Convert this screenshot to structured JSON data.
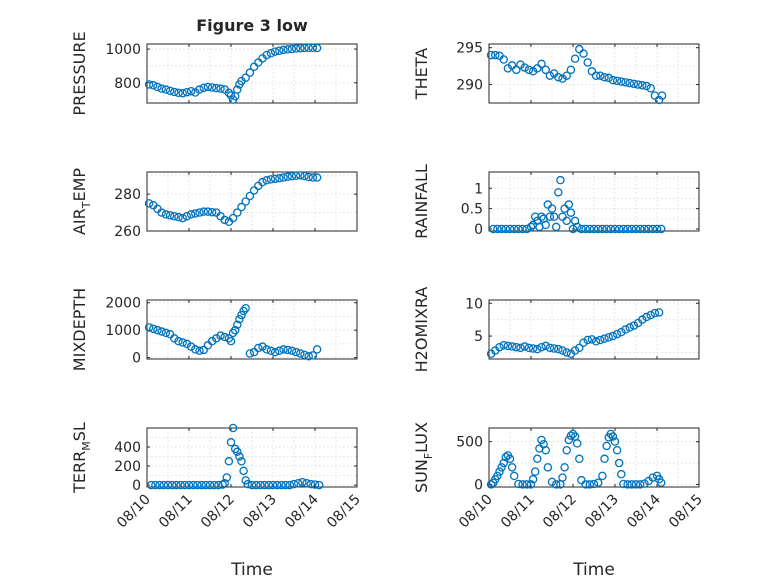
{
  "figure": {
    "title": "Figure 3 low",
    "xlabel": "Time",
    "xticks": [
      "08/10",
      "08/11",
      "08/12",
      "08/13",
      "08/14",
      "08/15"
    ]
  },
  "colors": {
    "marker": "#0072bd",
    "axis": "#262626",
    "grid": "#d9d9d9"
  },
  "chart_data": [
    {
      "type": "scatter",
      "title": "Figure 3 low",
      "ylabel": "PRESSURE",
      "ylim": [
        680,
        1030
      ],
      "yticks": [
        800,
        1000
      ],
      "xlim": [
        "08/10",
        "08/15"
      ],
      "grid": true,
      "x": [
        0.05,
        0.15,
        0.25,
        0.35,
        0.45,
        0.55,
        0.65,
        0.75,
        0.85,
        0.95,
        1.05,
        1.15,
        1.25,
        1.35,
        1.45,
        1.55,
        1.65,
        1.75,
        1.85,
        1.95,
        2.0,
        2.05,
        2.1,
        2.15,
        2.2,
        2.25,
        2.35,
        2.45,
        2.55,
        2.65,
        2.75,
        2.85,
        2.95,
        3.05,
        3.15,
        3.25,
        3.35,
        3.45,
        3.55,
        3.65,
        3.75,
        3.85,
        3.95,
        4.05
      ],
      "values": [
        790,
        785,
        775,
        765,
        760,
        752,
        745,
        740,
        738,
        744,
        750,
        742,
        760,
        770,
        775,
        772,
        768,
        765,
        760,
        740,
        725,
        700,
        720,
        760,
        790,
        810,
        830,
        860,
        895,
        920,
        945,
        965,
        975,
        985,
        990,
        995,
        998,
        1000,
        1003,
        1005,
        1006,
        1007,
        1007,
        1006
      ]
    },
    {
      "type": "scatter",
      "ylabel": "THETA",
      "ylim": [
        287.5,
        295.5
      ],
      "yticks": [
        290,
        295
      ],
      "xlim": [
        "08/10",
        "08/15"
      ],
      "grid": true,
      "x": [
        0.05,
        0.15,
        0.25,
        0.35,
        0.45,
        0.55,
        0.65,
        0.75,
        0.85,
        0.95,
        1.05,
        1.15,
        1.25,
        1.35,
        1.45,
        1.55,
        1.65,
        1.75,
        1.85,
        1.95,
        2.05,
        2.15,
        2.25,
        2.35,
        2.45,
        2.55,
        2.65,
        2.75,
        2.85,
        2.95,
        3.05,
        3.15,
        3.25,
        3.35,
        3.45,
        3.55,
        3.65,
        3.75,
        3.85,
        3.95,
        4.05,
        4.12
      ],
      "values": [
        294,
        294,
        293.9,
        293.4,
        292.2,
        292.6,
        292,
        292.7,
        292.3,
        292,
        291.8,
        292.2,
        292.8,
        292,
        291.2,
        291.5,
        291,
        290.8,
        291.2,
        292,
        293.5,
        294.8,
        294.2,
        293,
        291.8,
        291.2,
        291.2,
        291,
        290.9,
        290.6,
        290.5,
        290.4,
        290.3,
        290.2,
        290.1,
        290,
        289.9,
        289.8,
        289.5,
        288.5,
        287.9,
        288.5
      ]
    },
    {
      "type": "scatter",
      "ylabel": "AIR_TEMP",
      "ylim": [
        260,
        292
      ],
      "yticks": [
        260,
        280
      ],
      "xlim": [
        "08/10",
        "08/15"
      ],
      "grid": true,
      "x": [
        0.05,
        0.15,
        0.25,
        0.35,
        0.45,
        0.55,
        0.65,
        0.75,
        0.85,
        0.95,
        1.05,
        1.15,
        1.25,
        1.35,
        1.45,
        1.55,
        1.65,
        1.75,
        1.85,
        1.95,
        2.05,
        2.15,
        2.25,
        2.35,
        2.45,
        2.55,
        2.65,
        2.75,
        2.85,
        2.95,
        3.05,
        3.15,
        3.25,
        3.35,
        3.45,
        3.55,
        3.65,
        3.75,
        3.85,
        3.95,
        4.05
      ],
      "values": [
        275,
        274,
        272,
        270,
        269,
        268.5,
        268,
        267.5,
        267,
        268,
        269,
        269.5,
        270,
        270.5,
        270.5,
        270.2,
        270,
        268,
        266,
        265,
        267,
        270,
        273,
        276,
        279,
        282,
        284.5,
        286.5,
        287.5,
        288,
        288.3,
        288.6,
        289,
        289.4,
        289.7,
        290,
        290.2,
        289.8,
        289.3,
        289,
        289
      ]
    },
    {
      "type": "scatter",
      "ylabel": "RAINFALL",
      "ylim": [
        -0.05,
        1.4
      ],
      "yticks": [
        0,
        0.5,
        1
      ],
      "xlim": [
        "08/10",
        "08/15"
      ],
      "grid": true,
      "x": [
        0.1,
        0.2,
        0.3,
        0.4,
        0.5,
        0.6,
        0.7,
        0.8,
        0.9,
        1.0,
        1.05,
        1.1,
        1.15,
        1.2,
        1.25,
        1.3,
        1.35,
        1.4,
        1.45,
        1.5,
        1.55,
        1.6,
        1.65,
        1.7,
        1.75,
        1.8,
        1.85,
        1.9,
        1.95,
        2.0,
        2.05,
        2.1,
        2.2,
        2.3,
        2.4,
        2.5,
        2.6,
        2.7,
        2.8,
        2.9,
        3.0,
        3.1,
        3.2,
        3.3,
        3.4,
        3.5,
        3.6,
        3.7,
        3.8,
        3.9,
        4.0,
        4.1
      ],
      "values": [
        0,
        0,
        0,
        0,
        0,
        0,
        0,
        0,
        0,
        0.05,
        0.1,
        0.3,
        0.2,
        0.05,
        0.3,
        0.25,
        0.1,
        0.6,
        0.3,
        0.5,
        0.3,
        0.05,
        0.9,
        1.2,
        0.3,
        0.5,
        0.2,
        0.6,
        0.4,
        0,
        0.2,
        0.05,
        0,
        0,
        0,
        0,
        0,
        0,
        0,
        0,
        0,
        0,
        0,
        0,
        0,
        0,
        0,
        0,
        0,
        0,
        0,
        0
      ]
    },
    {
      "type": "scatter",
      "ylabel": "MIXDEPTH",
      "ylim": [
        -50,
        2100
      ],
      "yticks": [
        0,
        1000,
        2000
      ],
      "xlim": [
        "08/10",
        "08/15"
      ],
      "grid": true,
      "x": [
        0.05,
        0.15,
        0.25,
        0.35,
        0.45,
        0.55,
        0.65,
        0.75,
        0.85,
        0.95,
        1.05,
        1.15,
        1.25,
        1.35,
        1.45,
        1.55,
        1.65,
        1.75,
        1.85,
        1.95,
        2.0,
        2.05,
        2.1,
        2.15,
        2.2,
        2.25,
        2.3,
        2.35,
        2.45,
        2.55,
        2.65,
        2.75,
        2.85,
        2.95,
        3.05,
        3.15,
        3.25,
        3.35,
        3.45,
        3.55,
        3.65,
        3.75,
        3.85,
        3.95,
        4.05
      ],
      "values": [
        1100,
        1050,
        1000,
        950,
        900,
        850,
        700,
        600,
        550,
        500,
        400,
        300,
        250,
        280,
        450,
        600,
        700,
        800,
        750,
        700,
        600,
        900,
        1000,
        1200,
        1400,
        1550,
        1700,
        1800,
        150,
        200,
        350,
        400,
        300,
        250,
        200,
        250,
        300,
        280,
        250,
        200,
        150,
        100,
        50,
        80,
        300
      ]
    },
    {
      "type": "scatter",
      "ylabel": "H2OMIXRA",
      "ylim": [
        1.5,
        10.5
      ],
      "yticks": [
        5,
        10
      ],
      "xlim": [
        "08/10",
        "08/15"
      ],
      "grid": true,
      "x": [
        0.05,
        0.15,
        0.25,
        0.35,
        0.45,
        0.55,
        0.65,
        0.75,
        0.85,
        0.95,
        1.05,
        1.15,
        1.25,
        1.35,
        1.45,
        1.55,
        1.65,
        1.75,
        1.85,
        1.95,
        2.05,
        2.15,
        2.25,
        2.35,
        2.45,
        2.55,
        2.65,
        2.75,
        2.85,
        2.95,
        3.05,
        3.15,
        3.25,
        3.35,
        3.45,
        3.55,
        3.65,
        3.75,
        3.85,
        3.95,
        4.05
      ],
      "values": [
        2.3,
        2.8,
        3.3,
        3.6,
        3.5,
        3.4,
        3.3,
        3.2,
        3.4,
        3.2,
        3.1,
        3.0,
        3.3,
        3.5,
        3.2,
        3.1,
        3.0,
        2.8,
        2.5,
        2.3,
        2.8,
        3.2,
        4.0,
        4.4,
        4.5,
        4.2,
        4.4,
        4.6,
        4.8,
        5.0,
        5.3,
        5.6,
        6.0,
        6.3,
        6.6,
        7.0,
        7.5,
        7.9,
        8.2,
        8.5,
        8.6
      ]
    },
    {
      "type": "scatter",
      "ylabel": "TERR_MSL",
      "ylim": [
        -20,
        600
      ],
      "yticks": [
        0,
        200,
        400
      ],
      "xlim": [
        "08/10",
        "08/15"
      ],
      "grid": true,
      "x": [
        0.1,
        0.2,
        0.3,
        0.4,
        0.5,
        0.6,
        0.7,
        0.8,
        0.9,
        1.0,
        1.1,
        1.2,
        1.3,
        1.4,
        1.5,
        1.6,
        1.7,
        1.8,
        1.85,
        1.9,
        1.95,
        2.0,
        2.05,
        2.1,
        2.15,
        2.2,
        2.25,
        2.3,
        2.35,
        2.4,
        2.5,
        2.6,
        2.7,
        2.8,
        2.9,
        3.0,
        3.1,
        3.2,
        3.3,
        3.4,
        3.5,
        3.6,
        3.7,
        3.8,
        3.9,
        4.0,
        4.1
      ],
      "values": [
        0,
        0,
        0,
        0,
        0,
        0,
        0,
        0,
        0,
        0,
        0,
        0,
        0,
        0,
        0,
        0,
        0,
        5,
        20,
        80,
        250,
        450,
        600,
        380,
        350,
        300,
        250,
        150,
        50,
        10,
        0,
        0,
        0,
        0,
        0,
        0,
        0,
        0,
        0,
        0,
        10,
        20,
        30,
        20,
        10,
        5,
        0
      ]
    },
    {
      "type": "scatter",
      "ylabel": "SUN_FLUX",
      "ylim": [
        -30,
        660
      ],
      "yticks": [
        0,
        500
      ],
      "xlim": [
        "08/10",
        "08/15"
      ],
      "grid": true,
      "x": [
        0.05,
        0.1,
        0.15,
        0.2,
        0.25,
        0.3,
        0.35,
        0.4,
        0.45,
        0.5,
        0.55,
        0.6,
        0.7,
        0.8,
        0.9,
        1.0,
        1.05,
        1.1,
        1.15,
        1.2,
        1.25,
        1.3,
        1.35,
        1.4,
        1.5,
        1.6,
        1.7,
        1.75,
        1.8,
        1.85,
        1.9,
        1.95,
        2.0,
        2.05,
        2.1,
        2.15,
        2.2,
        2.3,
        2.4,
        2.5,
        2.6,
        2.7,
        2.75,
        2.8,
        2.85,
        2.9,
        2.95,
        3.0,
        3.05,
        3.1,
        3.15,
        3.2,
        3.3,
        3.4,
        3.5,
        3.6,
        3.7,
        3.8,
        3.9,
        4.0,
        4.05,
        4.1
      ],
      "values": [
        0,
        20,
        60,
        100,
        150,
        200,
        250,
        320,
        340,
        300,
        200,
        100,
        5,
        0,
        0,
        0,
        60,
        150,
        300,
        420,
        520,
        470,
        400,
        200,
        30,
        0,
        0,
        80,
        200,
        400,
        520,
        570,
        590,
        560,
        480,
        300,
        50,
        0,
        0,
        5,
        20,
        100,
        300,
        450,
        550,
        590,
        560,
        500,
        400,
        250,
        120,
        5,
        0,
        0,
        0,
        0,
        10,
        40,
        80,
        100,
        60,
        20
      ]
    }
  ]
}
